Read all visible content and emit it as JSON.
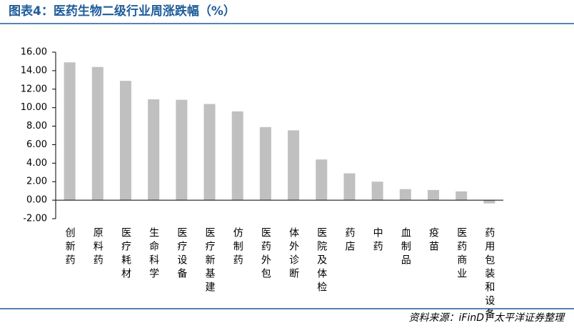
{
  "chart_data": {
    "type": "bar",
    "title": "图表4：医药生物二级行业周涨跌幅（%）",
    "source": "资料来源：iFinD，太平洋证券整理",
    "categories": [
      "创新药",
      "原料药",
      "医疗耗材",
      "生命科学",
      "医疗设备",
      "医疗新基建",
      "仿制药",
      "医药外包",
      "体外诊断",
      "医院及体检",
      "药店",
      "中药",
      "血制品",
      "疫苗",
      "医药商业",
      "药用包装和设备"
    ],
    "values": [
      14.9,
      14.4,
      12.9,
      10.9,
      10.85,
      10.4,
      9.6,
      7.9,
      7.55,
      4.4,
      2.9,
      2.0,
      1.2,
      1.1,
      0.95,
      -0.35
    ],
    "color": "#c0c0c0",
    "ylim": [
      -2,
      16
    ],
    "yticks": [
      {
        "value": -2,
        "label": "-2.00"
      },
      {
        "value": 0,
        "label": "0.00"
      },
      {
        "value": 2,
        "label": "2.00"
      },
      {
        "value": 4,
        "label": "4.00"
      },
      {
        "value": 6,
        "label": "6.00"
      },
      {
        "value": 8,
        "label": "8.00"
      },
      {
        "value": 10,
        "label": "10.00"
      },
      {
        "value": 12,
        "label": "12.00"
      },
      {
        "value": 14,
        "label": "14.00"
      },
      {
        "value": 16,
        "label": "16.00"
      }
    ],
    "grid": false
  }
}
